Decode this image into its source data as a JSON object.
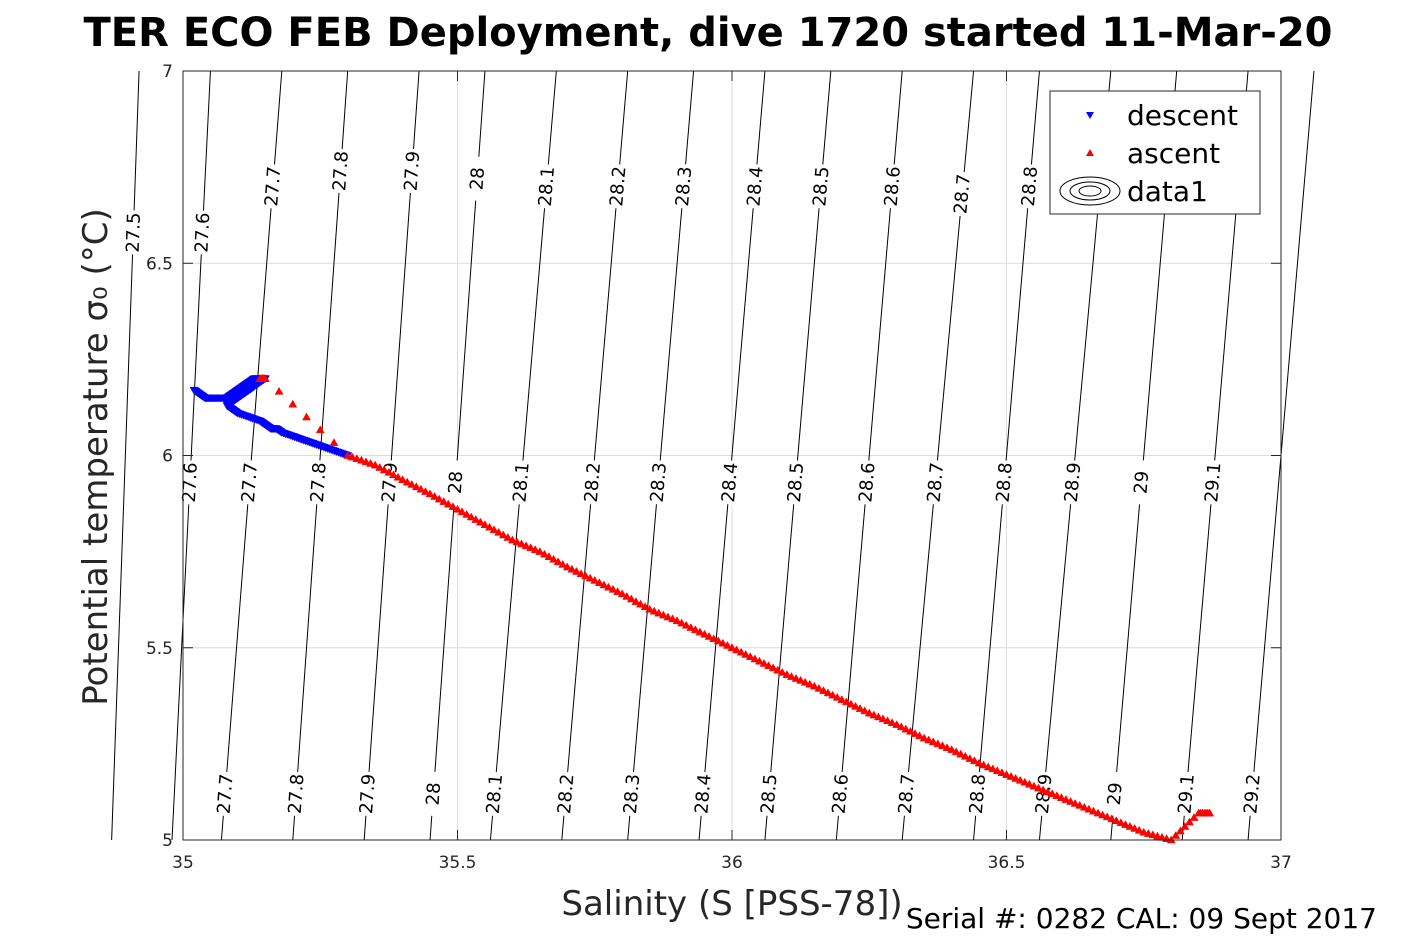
{
  "chart_data": {
    "type": "scatter",
    "title": "TER ECO FEB Deployment, dive 1720 started 11-Mar-20",
    "xlabel": "Salinity (S [PSS-78])",
    "ylabel": "Potential temperature σ₀ (°C)",
    "xlim": [
      35,
      37
    ],
    "ylim": [
      5,
      7
    ],
    "xticks": [
      35,
      35.5,
      36,
      36.5,
      37
    ],
    "yticks": [
      5,
      5.5,
      6,
      6.5,
      7
    ],
    "xtick_labels": [
      "35",
      "35.5",
      "36",
      "36.5",
      "37"
    ],
    "ytick_labels": [
      "5",
      "5.5",
      "6",
      "6.5",
      "7"
    ],
    "grid": true,
    "legend_position": "top-right",
    "density_contours": {
      "levels": [
        27.5,
        27.6,
        27.7,
        27.8,
        27.9,
        28,
        28.1,
        28.2,
        28.3,
        28.4,
        28.5,
        28.6,
        28.7,
        28.8,
        28.9,
        29,
        29.1,
        29.2
      ],
      "labels": [
        "27.5",
        "27.6",
        "27.7",
        "27.8",
        "27.9",
        "28",
        "28.1",
        "28.2",
        "28.3",
        "28.4",
        "28.5",
        "28.6",
        "28.7",
        "28.8",
        "28.9",
        "29",
        "29.1",
        "29.2"
      ],
      "salinity_at_T5": [
        34.87,
        34.98,
        35.07,
        35.2,
        35.33,
        35.45,
        35.56,
        35.69,
        35.81,
        35.94,
        36.06,
        36.19,
        36.31,
        36.44,
        36.56,
        36.69,
        36.82,
        36.94
      ],
      "salinity_at_T7": [
        34.92,
        35.05,
        35.18,
        35.3,
        35.43,
        35.55,
        35.68,
        35.81,
        35.93,
        36.06,
        36.18,
        36.31,
        36.44,
        36.56,
        36.69,
        36.81,
        36.94,
        37.06
      ],
      "label_temperatures": [
        6.58,
        6.58,
        6.7,
        6.74,
        6.74,
        6.72,
        6.7,
        6.7,
        6.7,
        6.7,
        6.7,
        6.7,
        6.68,
        5.95,
        5.95,
        5.95,
        5.95,
        5.15
      ],
      "bottom_label_levels": [
        "27.7",
        "27.8",
        "27.9",
        "28",
        "28.1",
        "28.2",
        "28.3",
        "28.4",
        "28.5",
        "28.6",
        "28.7",
        "28.8",
        "28.9",
        "29",
        "29.1",
        "29.2"
      ],
      "middle_label_levels": [
        "27.6",
        "27.7",
        "27.8",
        "27.9",
        "28",
        "28.1",
        "28.2",
        "28.3",
        "28.4",
        "28.5",
        "28.6",
        "28.7",
        "28.8",
        "28.9",
        "29",
        "29.1"
      ]
    },
    "series": [
      {
        "name": "descent",
        "marker": "down-triangle",
        "color": "#0000ff",
        "x": [
          35.02,
          35.03,
          35.04,
          35.05,
          35.06,
          35.07,
          35.08,
          35.09,
          35.1,
          35.11,
          35.12,
          35.13,
          35.14,
          35.15,
          35.13,
          35.12,
          35.11,
          35.1,
          35.09,
          35.08,
          35.09,
          35.1,
          35.12,
          35.14,
          35.15,
          35.16,
          35.17,
          35.18,
          35.2,
          35.22,
          35.24,
          35.26,
          35.28,
          35.3
        ],
        "y": [
          6.17,
          6.16,
          6.15,
          6.15,
          6.15,
          6.15,
          6.15,
          6.16,
          6.17,
          6.18,
          6.19,
          6.2,
          6.2,
          6.2,
          6.18,
          6.17,
          6.16,
          6.15,
          6.14,
          6.13,
          6.12,
          6.11,
          6.1,
          6.09,
          6.08,
          6.07,
          6.07,
          6.06,
          6.05,
          6.04,
          6.03,
          6.02,
          6.01,
          6.0
        ]
      },
      {
        "name": "ascent",
        "marker": "up-triangle",
        "color": "#ff0000",
        "x": [
          35.14,
          35.15,
          35.3,
          35.35,
          35.4,
          35.45,
          35.5,
          35.55,
          35.6,
          35.65,
          35.7,
          35.75,
          35.8,
          35.85,
          35.9,
          35.95,
          36.0,
          36.05,
          36.1,
          36.15,
          36.2,
          36.25,
          36.3,
          36.35,
          36.4,
          36.45,
          36.5,
          36.55,
          36.6,
          36.65,
          36.7,
          36.75,
          36.8,
          36.85,
          36.87
        ],
        "y": [
          6.2,
          6.2,
          6.0,
          5.975,
          5.937,
          5.9,
          5.86,
          5.82,
          5.78,
          5.75,
          5.71,
          5.675,
          5.64,
          5.6,
          5.57,
          5.535,
          5.5,
          5.465,
          5.43,
          5.4,
          5.365,
          5.33,
          5.3,
          5.265,
          5.235,
          5.2,
          5.17,
          5.14,
          5.11,
          5.08,
          5.05,
          5.02,
          5.0,
          5.07,
          5.07
        ]
      },
      {
        "name": "data1",
        "marker": "contour-ellipses",
        "color": "#000000",
        "x": [],
        "y": []
      }
    ],
    "footer": "Serial #: 0282  CAL: 09 Sept 2017"
  }
}
